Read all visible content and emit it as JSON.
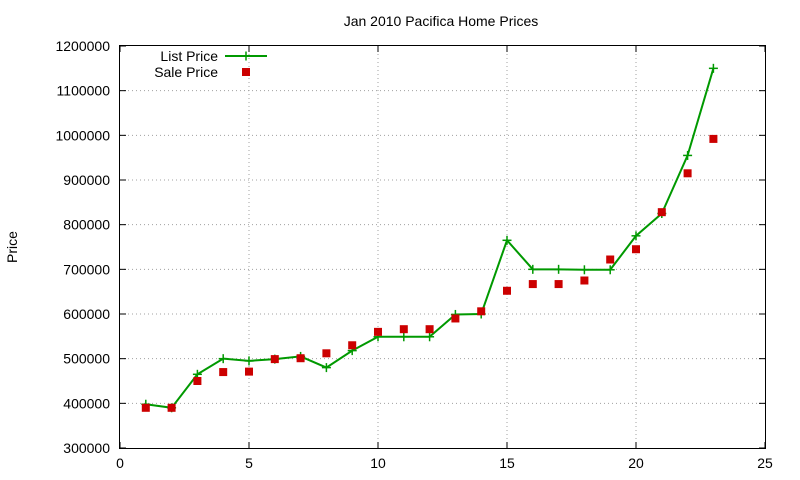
{
  "chart_data": {
    "type": "line",
    "title": "Jan 2010 Pacifica Home Prices",
    "xlabel": "",
    "ylabel": "Price",
    "xlim": [
      0,
      25
    ],
    "ylim": [
      300000,
      1200000
    ],
    "xticks": [
      0,
      5,
      10,
      15,
      20,
      25
    ],
    "yticks": [
      300000,
      400000,
      500000,
      600000,
      700000,
      800000,
      900000,
      1000000,
      1100000,
      1200000
    ],
    "grid": true,
    "legend": "top-left",
    "series": [
      {
        "name": "List Price",
        "style": "line-plus",
        "color": "#009900",
        "x": [
          1,
          2,
          3,
          4,
          5,
          6,
          7,
          8,
          9,
          10,
          11,
          12,
          13,
          14,
          15,
          16,
          17,
          18,
          19,
          20,
          21,
          22,
          23
        ],
        "y": [
          398000,
          390000,
          465000,
          500000,
          495000,
          499000,
          505000,
          480000,
          518000,
          549000,
          549000,
          549000,
          599000,
          600000,
          765000,
          700000,
          700000,
          699000,
          699000,
          775000,
          825000,
          955000,
          1150000
        ]
      },
      {
        "name": "Sale Price",
        "style": "square",
        "color": "#cc0000",
        "x": [
          1,
          2,
          3,
          4,
          5,
          6,
          7,
          8,
          9,
          10,
          11,
          12,
          13,
          14,
          15,
          16,
          17,
          18,
          19,
          20,
          21,
          22,
          23
        ],
        "y": [
          390000,
          390000,
          450000,
          470000,
          471000,
          499000,
          501000,
          512000,
          530000,
          560000,
          566000,
          566000,
          590000,
          606000,
          652000,
          667000,
          667000,
          675000,
          722000,
          745000,
          828000,
          915000,
          992000
        ]
      }
    ]
  }
}
